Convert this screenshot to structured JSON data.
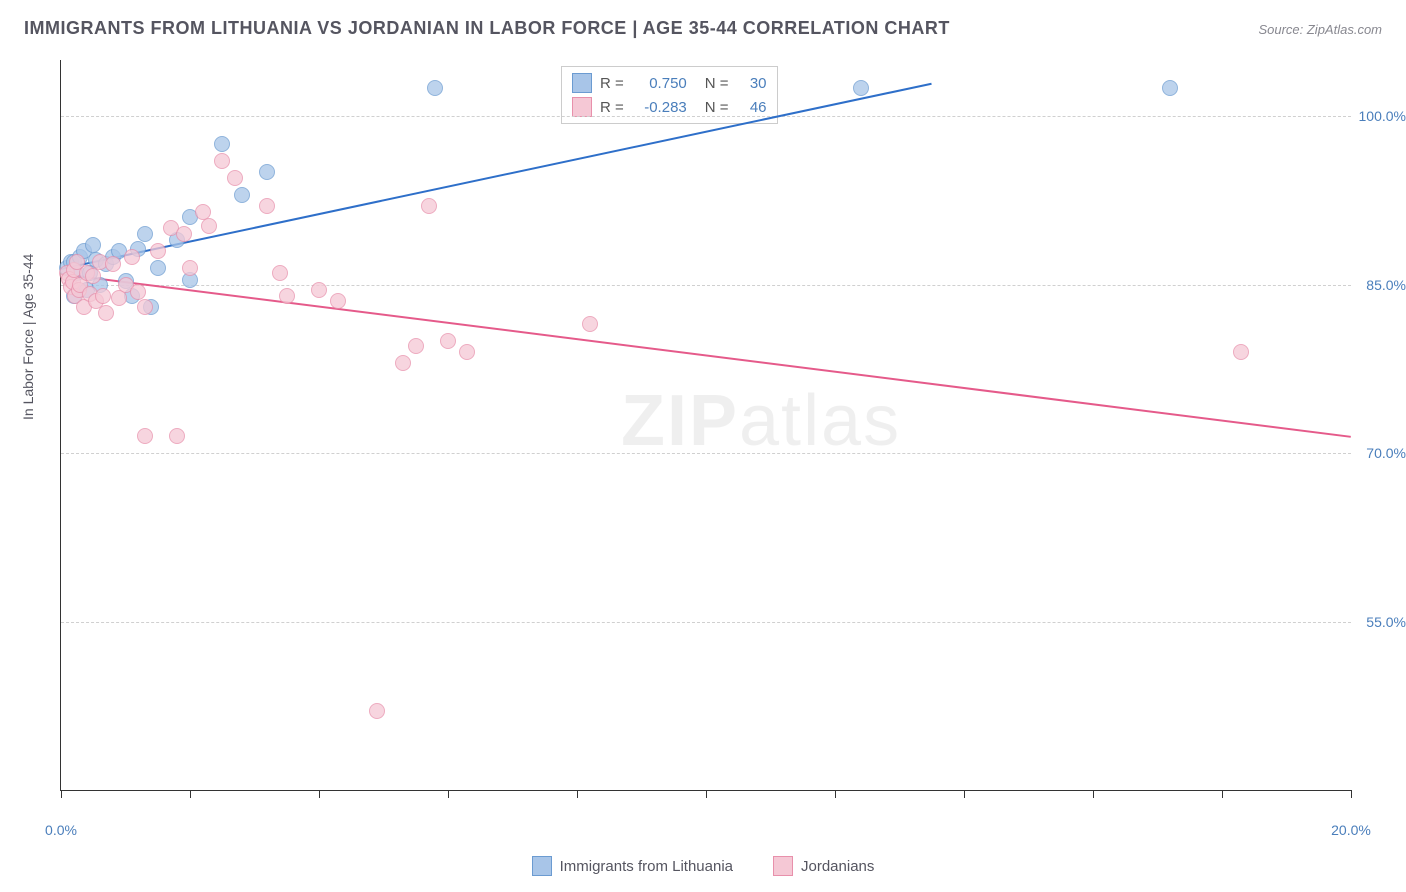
{
  "title": "IMMIGRANTS FROM LITHUANIA VS JORDANIAN IN LABOR FORCE | AGE 35-44 CORRELATION CHART",
  "source": "Source: ZipAtlas.com",
  "y_axis_label": "In Labor Force | Age 35-44",
  "watermark": {
    "bold": "ZIP",
    "light": "atlas"
  },
  "chart": {
    "type": "scatter",
    "xlim": [
      0,
      20
    ],
    "ylim": [
      40,
      105
    ],
    "y_ticks": [
      55,
      70,
      85,
      100
    ],
    "y_tick_labels": [
      "55.0%",
      "70.0%",
      "85.0%",
      "100.0%"
    ],
    "x_ticks": [
      0,
      2,
      4,
      6,
      8,
      10,
      12,
      14,
      16,
      18,
      20
    ],
    "x_tick_labels_shown": {
      "0": "0.0%",
      "20": "20.0%"
    },
    "background_color": "#ffffff",
    "grid_color": "#d0d0d0",
    "marker_radius": 7,
    "series": [
      {
        "name": "Immigrants from Lithuania",
        "fill": "#a8c5e8",
        "stroke": "#6b9bd1",
        "line_color": "#2e6fc9",
        "R": "0.750",
        "N": "30",
        "trend": {
          "x1": 0,
          "y1": 86.5,
          "x2": 13.5,
          "y2": 103
        },
        "points": [
          [
            0.1,
            86.5
          ],
          [
            0.15,
            87
          ],
          [
            0.2,
            87
          ],
          [
            0.2,
            84
          ],
          [
            0.25,
            86
          ],
          [
            0.3,
            87.5
          ],
          [
            0.35,
            88
          ],
          [
            0.4,
            84.5
          ],
          [
            0.45,
            86
          ],
          [
            0.5,
            88.5
          ],
          [
            0.55,
            87.2
          ],
          [
            0.6,
            85
          ],
          [
            0.7,
            86.8
          ],
          [
            0.8,
            87.5
          ],
          [
            0.9,
            88
          ],
          [
            1.0,
            85.3
          ],
          [
            1.1,
            84
          ],
          [
            1.2,
            88.2
          ],
          [
            1.3,
            89.5
          ],
          [
            1.4,
            83
          ],
          [
            1.5,
            86.5
          ],
          [
            1.8,
            89
          ],
          [
            2.0,
            91
          ],
          [
            2.0,
            85.4
          ],
          [
            2.5,
            97.5
          ],
          [
            2.8,
            93
          ],
          [
            3.2,
            95
          ],
          [
            5.8,
            102.5
          ],
          [
            12.4,
            102.5
          ],
          [
            17.2,
            102.5
          ]
        ]
      },
      {
        "name": "Jordanians",
        "fill": "#f5c8d5",
        "stroke": "#e890ab",
        "line_color": "#e55a8a",
        "R": "-0.283",
        "N": "46",
        "trend": {
          "x1": 0,
          "y1": 86,
          "x2": 20,
          "y2": 71.5
        },
        "points": [
          [
            0.1,
            86
          ],
          [
            0.12,
            85.5
          ],
          [
            0.15,
            84.8
          ],
          [
            0.18,
            85.2
          ],
          [
            0.2,
            86.3
          ],
          [
            0.22,
            84
          ],
          [
            0.25,
            87
          ],
          [
            0.28,
            84.5
          ],
          [
            0.3,
            85
          ],
          [
            0.35,
            83
          ],
          [
            0.4,
            86
          ],
          [
            0.45,
            84.2
          ],
          [
            0.5,
            85.8
          ],
          [
            0.55,
            83.5
          ],
          [
            0.6,
            87
          ],
          [
            0.65,
            84
          ],
          [
            0.7,
            82.5
          ],
          [
            0.8,
            86.8
          ],
          [
            0.9,
            83.8
          ],
          [
            1.0,
            85
          ],
          [
            1.1,
            87.5
          ],
          [
            1.2,
            84.3
          ],
          [
            1.3,
            83
          ],
          [
            1.5,
            88
          ],
          [
            1.7,
            90
          ],
          [
            1.9,
            89.5
          ],
          [
            2.0,
            86.5
          ],
          [
            2.2,
            91.5
          ],
          [
            2.3,
            90.2
          ],
          [
            2.5,
            96
          ],
          [
            2.7,
            94.5
          ],
          [
            3.2,
            92
          ],
          [
            3.4,
            86
          ],
          [
            3.5,
            84
          ],
          [
            4.0,
            84.5
          ],
          [
            4.3,
            83.5
          ],
          [
            4.9,
            47
          ],
          [
            5.3,
            78
          ],
          [
            5.5,
            79.5
          ],
          [
            5.7,
            92
          ],
          [
            6.0,
            80
          ],
          [
            6.3,
            79
          ],
          [
            8.2,
            81.5
          ],
          [
            1.8,
            71.5
          ],
          [
            1.3,
            71.5
          ],
          [
            18.3,
            79
          ]
        ]
      }
    ]
  },
  "legend": [
    {
      "label": "Immigrants from Lithuania",
      "fill": "#a8c5e8",
      "stroke": "#6b9bd1"
    },
    {
      "label": "Jordanians",
      "fill": "#f5c8d5",
      "stroke": "#e890ab"
    }
  ]
}
